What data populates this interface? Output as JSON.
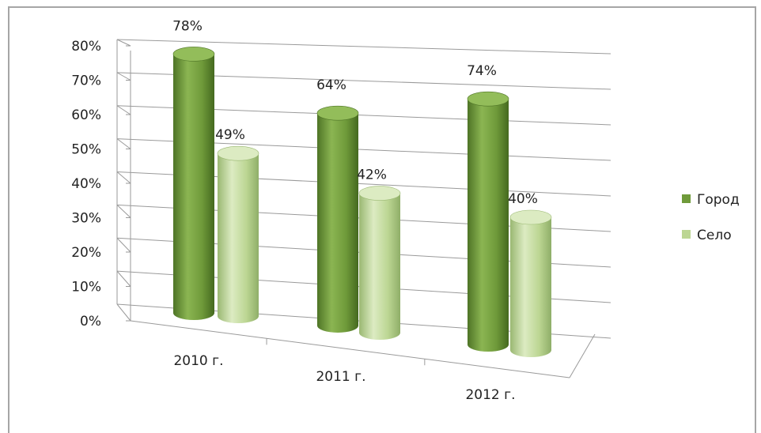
{
  "chart_data": {
    "type": "bar",
    "style": "3d-cylinder",
    "categories": [
      "2010 г.",
      "2011 г.",
      "2012 г."
    ],
    "series": [
      {
        "name": "Город",
        "values": [
          78,
          64,
          74
        ],
        "labels": [
          "78%",
          "64%",
          "74%"
        ]
      },
      {
        "name": "Село",
        "values": [
          49,
          42,
          40
        ],
        "labels": [
          "49%",
          "42%",
          "40%"
        ]
      }
    ],
    "y_ticks": [
      "0%",
      "10%",
      "20%",
      "30%",
      "40%",
      "50%",
      "60%",
      "70%",
      "80%"
    ],
    "ylim": [
      0,
      80
    ],
    "grid": true,
    "legend_position": "right"
  },
  "colors": {
    "gorod": "#6f9a3a",
    "gorod_dark": "#4e7426",
    "gorod_light": "#93bd5a",
    "selo": "#bcd693",
    "selo_dark": "#9ab872",
    "selo_light": "#dcebc2",
    "grid": "#9a9a9a"
  }
}
